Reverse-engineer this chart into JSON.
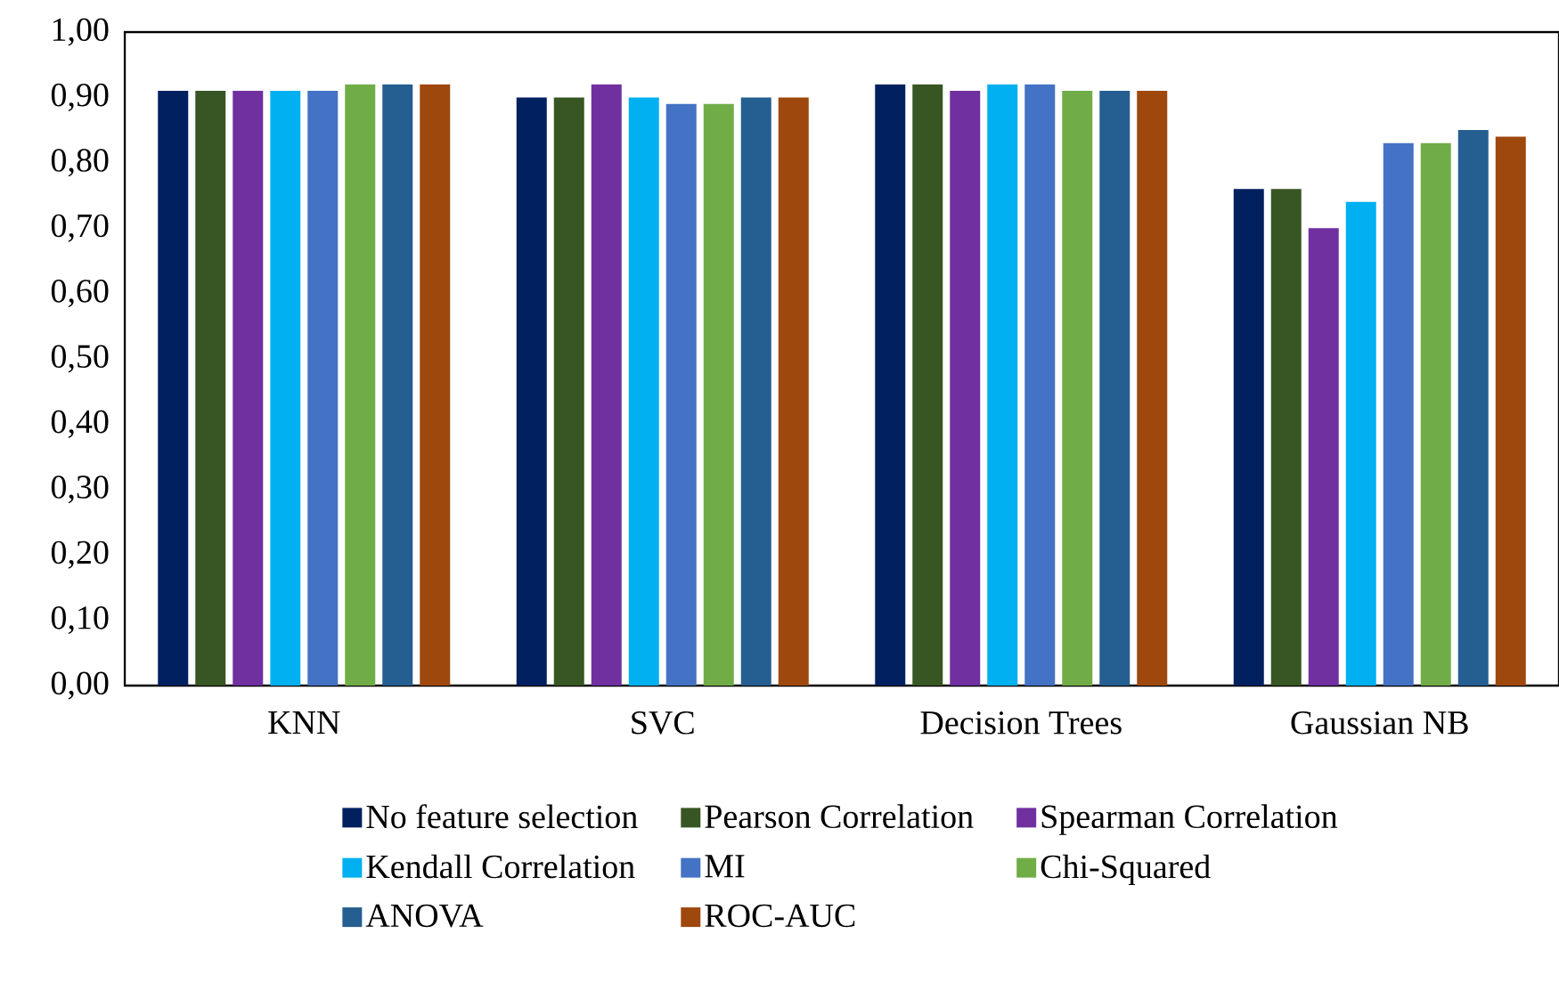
{
  "chart_data": {
    "type": "bar",
    "categories": [
      "KNN",
      "SVC",
      "Decision Trees",
      "Gaussian NB"
    ],
    "series": [
      {
        "name": "No feature selection",
        "color": "#002060",
        "values": [
          0.91,
          0.9,
          0.92,
          0.76
        ]
      },
      {
        "name": "Pearson Correlation",
        "color": "#375623",
        "values": [
          0.91,
          0.9,
          0.92,
          0.76
        ]
      },
      {
        "name": "Spearman Correlation",
        "color": "#7030a0",
        "values": [
          0.91,
          0.92,
          0.91,
          0.7
        ]
      },
      {
        "name": "Kendall Correlation",
        "color": "#00b0f0",
        "values": [
          0.91,
          0.9,
          0.92,
          0.74
        ]
      },
      {
        "name": "MI",
        "color": "#4472c4",
        "values": [
          0.91,
          0.89,
          0.92,
          0.83
        ]
      },
      {
        "name": "Chi-Squared",
        "color": "#70ad47",
        "values": [
          0.92,
          0.89,
          0.91,
          0.83
        ]
      },
      {
        "name": "ANOVA",
        "color": "#255e91",
        "values": [
          0.92,
          0.9,
          0.91,
          0.85
        ]
      },
      {
        "name": "ROC-AUC",
        "color": "#9e480e",
        "values": [
          0.92,
          0.9,
          0.91,
          0.84
        ]
      }
    ],
    "ylim": [
      0,
      1
    ],
    "yticks": [
      {
        "value": 0,
        "label": "0,00"
      },
      {
        "value": 0.1,
        "label": "0,10"
      },
      {
        "value": 0.2,
        "label": "0,20"
      },
      {
        "value": 0.3,
        "label": "0,30"
      },
      {
        "value": 0.4,
        "label": "0,40"
      },
      {
        "value": 0.5,
        "label": "0,50"
      },
      {
        "value": 0.6,
        "label": "0,60"
      },
      {
        "value": 0.7,
        "label": "0,70"
      },
      {
        "value": 0.8,
        "label": "0,80"
      },
      {
        "value": 0.9,
        "label": "0,90"
      },
      {
        "value": 1,
        "label": "1,00"
      }
    ],
    "legend": "bottom"
  }
}
